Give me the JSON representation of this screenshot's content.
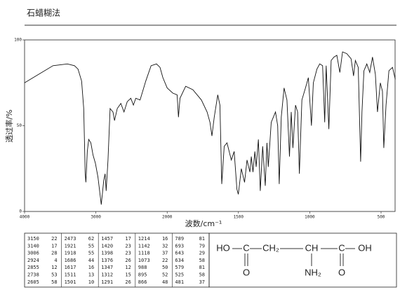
{
  "chart_data": {
    "type": "line",
    "title": "石蜡糊法",
    "x_label": "波数/cm⁻¹",
    "y_label": "透过率/%",
    "xlim": [
      4000,
      400
    ],
    "xticks": [
      4000,
      3000,
      2000,
      1500,
      1000,
      500
    ],
    "ylim": [
      0,
      100
    ],
    "yticks": [
      0,
      50,
      100
    ],
    "color": "#111111",
    "x": [
      4000,
      3800,
      3600,
      3400,
      3300,
      3250,
      3200,
      3170,
      3150,
      3140,
      3120,
      3100,
      3070,
      3040,
      3006,
      2970,
      2924,
      2890,
      2870,
      2855,
      2830,
      2800,
      2760,
      2738,
      2700,
      2650,
      2605,
      2560,
      2510,
      2473,
      2440,
      2380,
      2300,
      2225,
      2150,
      2100,
      2060,
      2000,
      1960,
      1930,
      1921,
      1910,
      1870,
      1820,
      1760,
      1720,
      1700,
      1686,
      1670,
      1645,
      1630,
      1617,
      1600,
      1580,
      1550,
      1530,
      1511,
      1501,
      1480,
      1457,
      1440,
      1420,
      1410,
      1398,
      1385,
      1376,
      1360,
      1347,
      1330,
      1312,
      1300,
      1291,
      1270,
      1240,
      1225,
      1214,
      1200,
      1180,
      1160,
      1142,
      1130,
      1118,
      1100,
      1085,
      1073,
      1055,
      1030,
      1010,
      988,
      975,
      950,
      930,
      910,
      895,
      885,
      866,
      850,
      830,
      810,
      789,
      770,
      740,
      710,
      693,
      680,
      660,
      643,
      634,
      620,
      600,
      579,
      560,
      540,
      525,
      505,
      490,
      481,
      465,
      445,
      420,
      400
    ],
    "values": [
      75,
      80,
      85,
      86,
      85,
      83,
      76,
      60,
      22,
      17,
      35,
      42,
      40,
      33,
      28,
      20,
      4,
      18,
      22,
      12,
      30,
      60,
      58,
      53,
      60,
      63,
      58,
      64,
      66,
      62,
      66,
      65,
      76,
      85,
      86,
      84,
      78,
      72,
      69,
      68,
      55,
      66,
      73,
      71,
      65,
      58,
      52,
      44,
      55,
      68,
      62,
      16,
      38,
      40,
      30,
      35,
      13,
      10,
      25,
      17,
      30,
      23,
      32,
      23,
      35,
      26,
      42,
      12,
      38,
      15,
      40,
      26,
      52,
      58,
      50,
      16,
      55,
      72,
      65,
      32,
      58,
      37,
      62,
      58,
      22,
      65,
      72,
      78,
      50,
      75,
      83,
      86,
      85,
      52,
      85,
      48,
      88,
      90,
      91,
      81,
      93,
      92,
      89,
      79,
      88,
      84,
      29,
      58,
      82,
      86,
      81,
      90,
      80,
      58,
      75,
      70,
      37,
      62,
      82,
      84,
      77
    ]
  },
  "peak_table": {
    "columns": [
      [
        [
          3150,
          22
        ],
        [
          3140,
          17
        ],
        [
          3006,
          28
        ],
        [
          2924,
          4
        ],
        [
          2855,
          12
        ],
        [
          2738,
          53
        ],
        [
          2605,
          58
        ]
      ],
      [
        [
          2473,
          62
        ],
        [
          1921,
          55
        ],
        [
          1918,
          55
        ],
        [
          1686,
          44
        ],
        [
          1617,
          16
        ],
        [
          1511,
          13
        ],
        [
          1501,
          10
        ]
      ],
      [
        [
          1457,
          17
        ],
        [
          1420,
          23
        ],
        [
          1398,
          23
        ],
        [
          1376,
          26
        ],
        [
          1347,
          12
        ],
        [
          1312,
          15
        ],
        [
          1291,
          26
        ]
      ],
      [
        [
          1214,
          16
        ],
        [
          1142,
          32
        ],
        [
          1118,
          37
        ],
        [
          1073,
          22
        ],
        [
          988,
          50
        ],
        [
          895,
          52
        ],
        [
          866,
          48
        ]
      ],
      [
        [
          789,
          81
        ],
        [
          693,
          79
        ],
        [
          643,
          29
        ],
        [
          634,
          58
        ],
        [
          579,
          81
        ],
        [
          525,
          58
        ],
        [
          481,
          37
        ]
      ]
    ]
  },
  "structure": {
    "atoms": [
      "HO",
      "C",
      "CH₂",
      "CH",
      "C",
      "OH"
    ],
    "carbonyl_1": "O",
    "amine": "NH₂",
    "carbonyl_2": "O"
  }
}
